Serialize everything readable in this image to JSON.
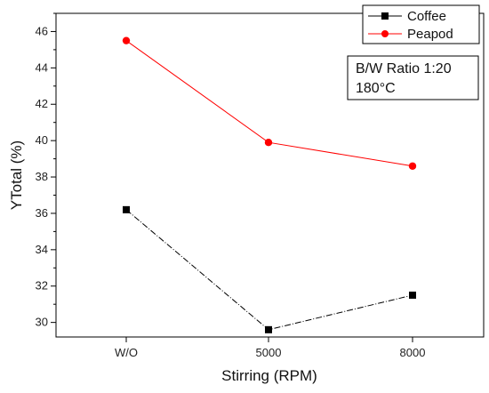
{
  "chart_data": {
    "type": "line",
    "categories": [
      "W/O",
      "5000",
      "8000"
    ],
    "series": [
      {
        "name": "Coffee",
        "values": [
          36.2,
          29.6,
          31.5
        ],
        "color": "#000000",
        "marker": "square",
        "line_style": "dash-dot"
      },
      {
        "name": "Peapod",
        "values": [
          45.5,
          39.9,
          38.6
        ],
        "color": "#ff0000",
        "marker": "circle",
        "line_style": "solid"
      }
    ],
    "title": "",
    "xlabel": "Stirring (RPM)",
    "ylabel": "YTotal (%)",
    "ylim": [
      29.2,
      47
    ],
    "yticks": [
      30,
      32,
      34,
      36,
      38,
      40,
      42,
      44,
      46
    ],
    "grid": false,
    "legend": {
      "placement": "top-right"
    },
    "annotation": {
      "lines": [
        "B/W Ratio 1:20",
        "180°C"
      ]
    }
  }
}
